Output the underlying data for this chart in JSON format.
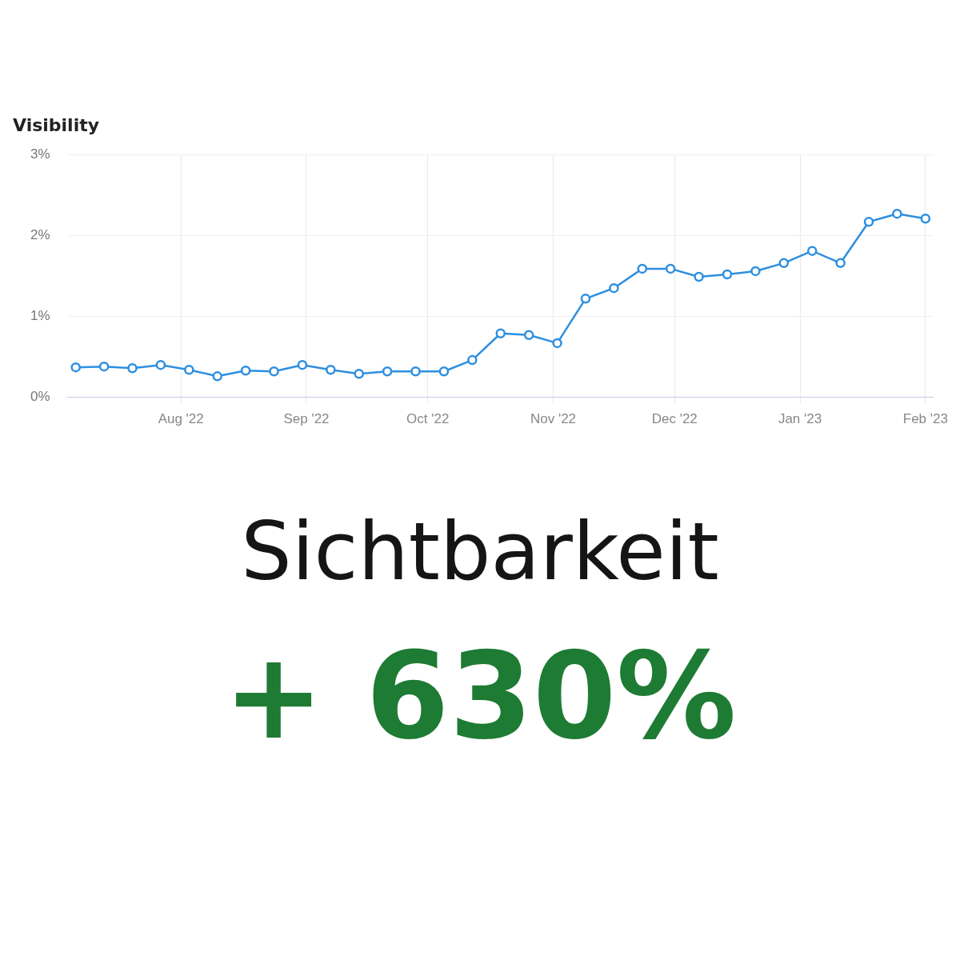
{
  "chart_data": {
    "type": "line",
    "title": "Visibility",
    "x": [
      "2022-07-06",
      "2022-07-13",
      "2022-07-20",
      "2022-07-27",
      "2022-08-03",
      "2022-08-10",
      "2022-08-17",
      "2022-08-24",
      "2022-08-31",
      "2022-09-07",
      "2022-09-14",
      "2022-09-21",
      "2022-09-28",
      "2022-10-05",
      "2022-10-12",
      "2022-10-19",
      "2022-10-26",
      "2022-11-02",
      "2022-11-09",
      "2022-11-16",
      "2022-11-23",
      "2022-11-30",
      "2022-12-07",
      "2022-12-14",
      "2022-12-21",
      "2022-12-28",
      "2023-01-04",
      "2023-01-11",
      "2023-01-18",
      "2023-01-25",
      "2023-02-01"
    ],
    "series": [
      {
        "color": "#2e8fe0",
        "values": [
          0.37,
          0.38,
          0.36,
          0.4,
          0.34,
          0.26,
          0.33,
          0.32,
          0.4,
          0.34,
          0.29,
          0.32,
          0.32,
          0.32,
          0.46,
          0.79,
          0.77,
          0.67,
          1.22,
          1.35,
          1.59,
          1.59,
          1.49,
          1.52,
          1.56,
          1.66,
          1.81,
          1.66,
          2.17,
          2.27,
          2.21
        ]
      }
    ],
    "xlim": [
      "2022-07-04",
      "2023-02-03"
    ],
    "xticks": [
      {
        "value": "2022-08-01",
        "label": "Aug '22"
      },
      {
        "value": "2022-09-01",
        "label": "Sep '22"
      },
      {
        "value": "2022-10-01",
        "label": "Oct '22"
      },
      {
        "value": "2022-11-01",
        "label": "Nov '22"
      },
      {
        "value": "2022-12-01",
        "label": "Dec '22"
      },
      {
        "value": "2023-01-01",
        "label": "Jan '23"
      },
      {
        "value": "2023-02-01",
        "label": "Feb '23"
      }
    ],
    "ylim": [
      0,
      3
    ],
    "yticks": [
      {
        "value": 0,
        "label": "0%"
      },
      {
        "value": 1,
        "label": "1%"
      },
      {
        "value": 2,
        "label": "2%"
      },
      {
        "value": 3,
        "label": "3%"
      }
    ],
    "grid": true,
    "marker": "circle",
    "line_style": "solid",
    "legend": false,
    "annotations": [
      "Sichtbarkeit",
      "+ 630%"
    ]
  }
}
